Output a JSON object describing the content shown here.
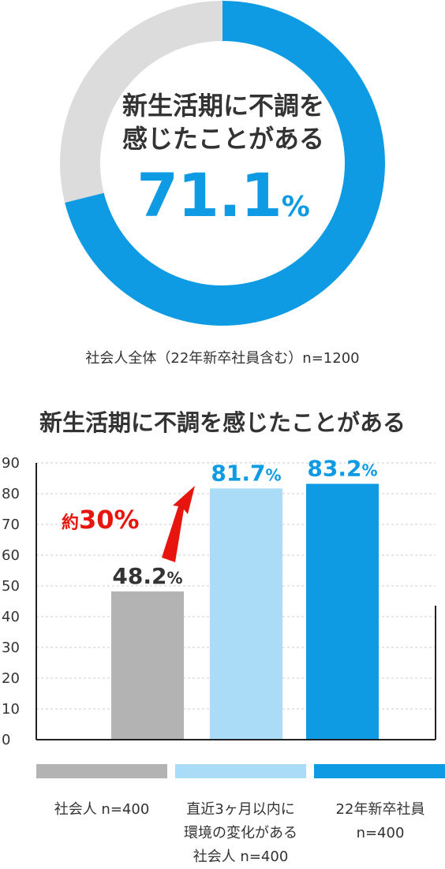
{
  "donut": {
    "title_line1": "新生活期に不調を",
    "title_line2": "感じたことがある",
    "value_number": "71.1",
    "value_unit": "%",
    "caption": "社会人全体（22年新卒社員含む）n=1200",
    "colors": {
      "filled": "#0e9be3",
      "remaining": "#dcdcdc"
    }
  },
  "bar_section": {
    "title": "新生活期に不調を感じたことがある",
    "annotation_prefix": "約",
    "annotation_value": "30%",
    "annotation_color": "#e8150e"
  },
  "chart_data": [
    {
      "type": "pie",
      "labels": [
        "新生活期に不調を感じたことがある",
        ""
      ],
      "values": [
        71.1,
        28.9
      ],
      "colors": [
        "#0e9be3",
        "#dcdcdc"
      ]
    },
    {
      "type": "bar",
      "title": "新生活期に不調を感じたことがある",
      "categories": [
        "社会人 n=400",
        "直近3ヶ月以内に環境の変化がある社会人 n=400",
        "22年新卒社員 n=400"
      ],
      "values": [
        48.2,
        81.7,
        83.2
      ],
      "value_labels": [
        "48.2%",
        "81.7%",
        "83.2%"
      ],
      "colors": [
        "#b3b3b3",
        "#aadcf7",
        "#0e9be3"
      ],
      "label_colors": [
        "#333333",
        "#0e9be3",
        "#0e9be3"
      ],
      "ylim": [
        0,
        90
      ],
      "yticks": [
        0,
        10,
        20,
        30,
        40,
        50,
        60,
        70,
        80,
        90
      ],
      "grid": true,
      "legend_position": "bottom"
    }
  ],
  "legend": [
    {
      "label": "社会人 n=400",
      "color": "#b3b3b3"
    },
    {
      "label": "直近3ヶ月以内に\n環境の変化がある\n社会人 n=400",
      "color": "#aadcf7"
    },
    {
      "label": "22年新卒社員\nn=400",
      "color": "#0e9be3"
    }
  ]
}
